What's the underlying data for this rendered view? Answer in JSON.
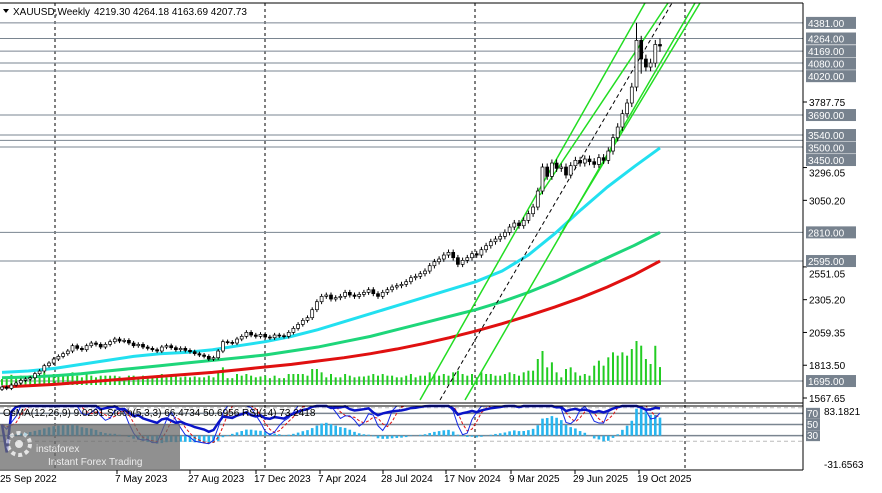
{
  "header": {
    "symbol": "XAUUSD,Weekly",
    "ohlc": "4219.30 4264.18 4163.69 4207.73"
  },
  "indicator_header": "OsMA(12,26,9) 9.0291  Stoch(5,3,3) 66.4734 50.6956  RSI(14) 73.2418",
  "watermark": {
    "brand": "instaforex",
    "tagline": "Instant Forex Trading"
  },
  "colors": {
    "background": "#ffffff",
    "level_box": "#77828e",
    "ma_fast": "#22e0f0",
    "ma_mid": "#1ed67a",
    "ma_slow": "#e01010",
    "channel": "#22dd22",
    "volume": "#22cc22",
    "osma": "#27b5ee",
    "rsi": "#0a14c8",
    "stoch_main": "#1428e6",
    "stoch_signal": "#e01010"
  },
  "chart_data": {
    "type": "candlestick",
    "symbol": "XAUUSD",
    "timeframe": "Weekly",
    "last_bar": {
      "open": 4219.3,
      "high": 4264.18,
      "low": 4163.69,
      "close": 4207.73
    },
    "ylim": [
      1567.65,
      4381.0
    ],
    "closes": [
      1650,
      1640,
      1665,
      1680,
      1700,
      1710,
      1720,
      1750,
      1770,
      1810,
      1830,
      1860,
      1880,
      1900,
      1920,
      1960,
      1940,
      1930,
      1960,
      1980,
      1970,
      1950,
      1970,
      1990,
      2010,
      1995,
      2000,
      1980,
      1960,
      1970,
      1950,
      1940,
      1930,
      1920,
      1950,
      1960,
      1945,
      1930,
      1940,
      1925,
      1915,
      1900,
      1890,
      1880,
      1860,
      1870,
      1920,
      1990,
      1985,
      1980,
      2010,
      2030,
      2060,
      2040,
      2030,
      2045,
      2025,
      2020,
      2040,
      2035,
      2030,
      2060,
      2090,
      2120,
      2150,
      2170,
      2230,
      2290,
      2330,
      2340,
      2310,
      2320,
      2330,
      2360,
      2340,
      2330,
      2345,
      2360,
      2380,
      2350,
      2330,
      2360,
      2380,
      2400,
      2410,
      2420,
      2440,
      2470,
      2480,
      2500,
      2520,
      2560,
      2590,
      2610,
      2640,
      2660,
      2620,
      2570,
      2600,
      2620,
      2650,
      2640,
      2680,
      2710,
      2740,
      2760,
      2780,
      2810,
      2850,
      2880,
      2860,
      2900,
      2950,
      3000,
      3120,
      3300,
      3230,
      3330,
      3290,
      3300,
      3240,
      3310,
      3350,
      3330,
      3360,
      3340,
      3320,
      3370,
      3350,
      3420,
      3520,
      3600,
      3700,
      3780,
      3900,
      4250,
      4110,
      4050,
      4080,
      4219.3,
      4207.73
    ],
    "moving_averages": [
      {
        "color_key": "ma_fast",
        "values": [
          1760,
          1770,
          1790,
          1820,
          1850,
          1880,
          1900,
          1910,
          1930,
          1960,
          1990,
          2030,
          2080,
          2140,
          2200,
          2260,
          2320,
          2380,
          2440,
          2520,
          2640,
          2800,
          2980,
          3150,
          3300,
          3443
        ]
      },
      {
        "color_key": "ma_mid",
        "values": [
          1720,
          1725,
          1735,
          1750,
          1770,
          1790,
          1810,
          1830,
          1850,
          1870,
          1890,
          1920,
          1950,
          1990,
          2030,
          2080,
          2130,
          2180,
          2230,
          2290,
          2360,
          2440,
          2530,
          2620,
          2710,
          2810
        ]
      },
      {
        "color_key": "ma_slow",
        "values": [
          1650,
          1660,
          1670,
          1685,
          1700,
          1715,
          1730,
          1745,
          1760,
          1780,
          1800,
          1820,
          1845,
          1870,
          1900,
          1935,
          1975,
          2020,
          2070,
          2125,
          2185,
          2250,
          2320,
          2400,
          2490,
          2595
        ]
      }
    ],
    "horizontal_levels": [
      4381.0,
      4264.0,
      4169.0,
      4080.0,
      4020.0,
      3690.0,
      3540.0,
      3500.0,
      3450.0,
      2810.0,
      2595.0,
      1695.0
    ],
    "y_ticks": [
      "3787.75",
      "3296.05",
      "3050.20",
      "2551.05",
      "2305.20",
      "2059.35",
      "1813.50",
      "1567.65"
    ],
    "x_ticks": [
      "25 Sep 2022",
      "7 May 2023",
      "27 Aug 2023",
      "17 Dec 2023",
      "7 Apr 2024",
      "28 Jul 2024",
      "17 Nov 2024",
      "9 Mar 2025",
      "29 Jun 2025",
      "19 Oct 2025"
    ],
    "indicator": {
      "ylim": [
        -31.6563,
        83.1821
      ],
      "y_labels": [
        "83.1821",
        "-31.6563"
      ],
      "levels": [
        "80",
        "70",
        "50",
        "30",
        "20"
      ],
      "osma": 9.0291,
      "stoch_main": 66.4734,
      "stoch_signal": 50.6956,
      "rsi": 73.2418
    }
  }
}
